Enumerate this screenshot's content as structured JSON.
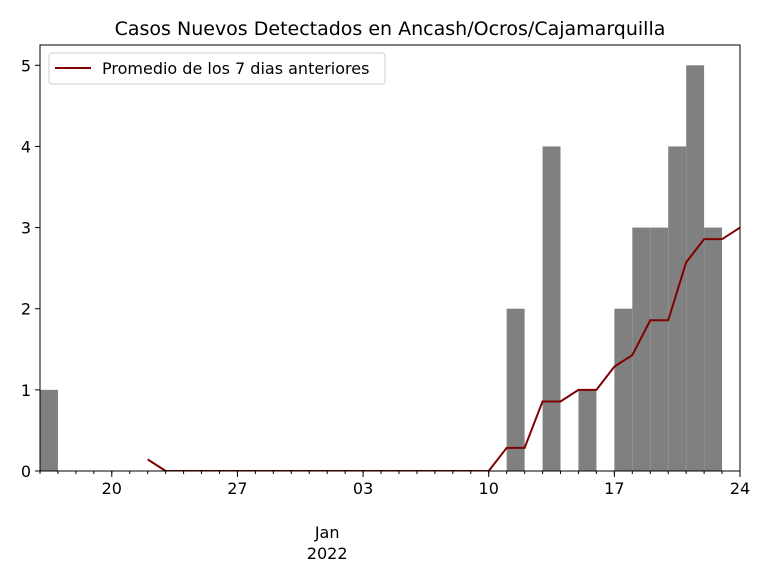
{
  "chart_data": {
    "type": "bar",
    "title": "Casos Nuevos Detectados en Ancash/Ocros/Cajamarquilla",
    "xlabel": "",
    "ylabel": "",
    "x_start": "2021-12-16",
    "dates": [
      "2021-12-16",
      "2021-12-17",
      "2021-12-18",
      "2021-12-19",
      "2021-12-20",
      "2021-12-21",
      "2021-12-22",
      "2021-12-23",
      "2021-12-24",
      "2021-12-25",
      "2021-12-26",
      "2021-12-27",
      "2021-12-28",
      "2021-12-29",
      "2021-12-30",
      "2021-12-31",
      "2022-01-01",
      "2022-01-02",
      "2022-01-03",
      "2022-01-04",
      "2022-01-05",
      "2022-01-06",
      "2022-01-07",
      "2022-01-08",
      "2022-01-09",
      "2022-01-10",
      "2022-01-11",
      "2022-01-12",
      "2022-01-13",
      "2022-01-14",
      "2022-01-15",
      "2022-01-16",
      "2022-01-17",
      "2022-01-18",
      "2022-01-19",
      "2022-01-20",
      "2022-01-21",
      "2022-01-22",
      "2022-01-23",
      "2022-01-24"
    ],
    "series": [
      {
        "name": "",
        "type": "bar",
        "color": "#808080",
        "values": [
          1,
          0,
          0,
          0,
          0,
          0,
          0,
          0,
          0,
          0,
          0,
          0,
          0,
          0,
          0,
          0,
          0,
          0,
          0,
          0,
          0,
          0,
          0,
          0,
          0,
          0,
          2,
          0,
          4,
          0,
          1,
          0,
          2,
          3,
          3,
          4,
          5,
          3,
          0,
          3
        ]
      },
      {
        "name": "Promedio de los 7 dias anteriores",
        "type": "line",
        "color": "#800000",
        "values": [
          null,
          null,
          null,
          null,
          null,
          null,
          0.1429,
          0,
          0,
          0,
          0,
          0,
          0,
          0,
          0,
          0,
          0,
          0,
          0,
          0,
          0,
          0,
          0,
          0,
          0,
          0,
          0.2857,
          0.2857,
          0.8571,
          0.8571,
          1.0,
          1.0,
          1.2857,
          1.4286,
          1.8571,
          1.8571,
          2.5714,
          2.8571,
          2.8571,
          3.0
        ]
      }
    ],
    "ylim": [
      0,
      5.25
    ],
    "y_ticks": [
      0,
      1,
      2,
      3,
      4,
      5
    ],
    "x_ticks": [
      {
        "date": "2021-12-20",
        "label": "20"
      },
      {
        "date": "2021-12-27",
        "label": "27"
      },
      {
        "date": "2022-01-03",
        "label": "03"
      },
      {
        "date": "2022-01-10",
        "label": "10"
      },
      {
        "date": "2022-01-17",
        "label": "17"
      },
      {
        "date": "2022-01-24",
        "label": "24"
      }
    ],
    "x_secondary_label": [
      "Jan",
      "2022"
    ],
    "legend_position": "top-left",
    "grid": false
  }
}
